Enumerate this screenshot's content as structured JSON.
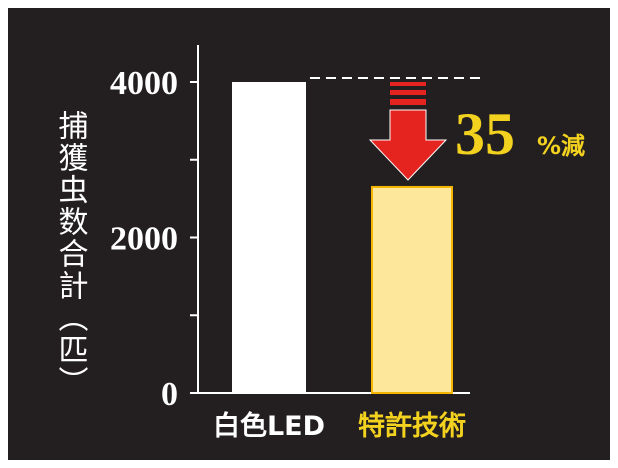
{
  "chart_data": {
    "type": "bar",
    "y_label": "捕獲虫数合計（匹）",
    "categories": [
      "白色LED",
      "特許技術"
    ],
    "values": [
      4000,
      2650
    ],
    "colors": [
      "#ffffff",
      "#fde79a"
    ],
    "category_label_colors": [
      "#ffffff",
      "#f2d21f"
    ],
    "ylim": [
      0,
      4000
    ],
    "yticks": [
      0,
      2000,
      4000
    ],
    "minor_yticks": [
      1000,
      3000
    ],
    "annotation": {
      "number": "35",
      "suffix": "%減",
      "color": "#f2d21f"
    }
  }
}
